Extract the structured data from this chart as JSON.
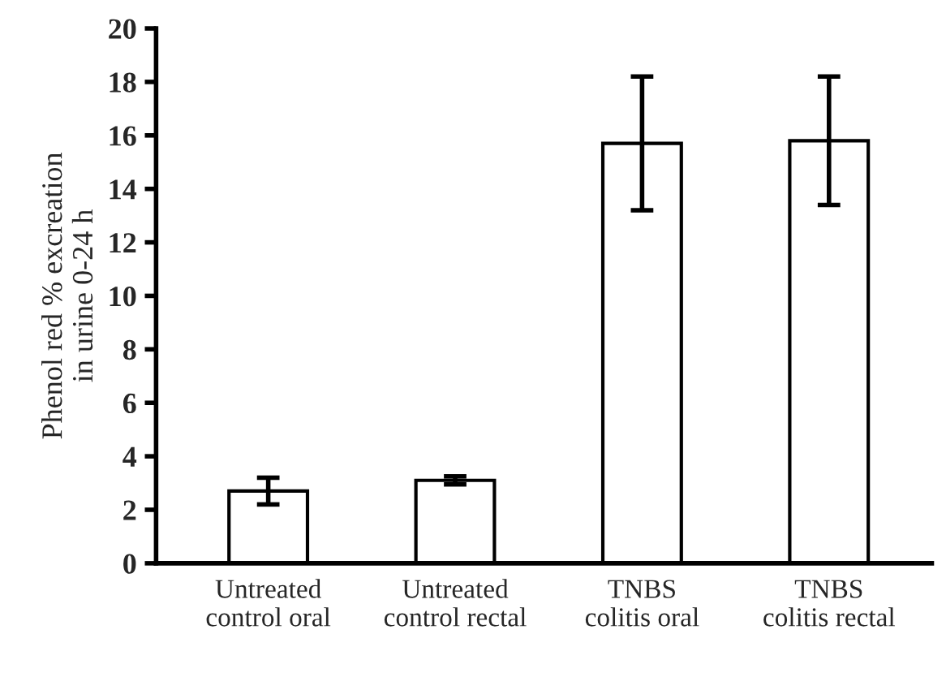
{
  "chart_data": {
    "type": "bar",
    "ylabel": "Phenol red % excreation\nin urine 0-24 h",
    "categories": [
      "Untreated\ncontrol oral",
      "Untreated\ncontrol rectal",
      "TNBS\ncolitis oral",
      "TNBS\ncolitis rectal"
    ],
    "values": [
      2.7,
      3.1,
      15.7,
      15.8
    ],
    "errors": [
      0.5,
      0.15,
      2.5,
      2.4
    ],
    "color": "#ffffff",
    "ylim": [
      0,
      20
    ],
    "yticks": [
      0,
      2,
      4,
      6,
      8,
      10,
      12,
      14,
      16,
      18,
      20
    ],
    "grid": false,
    "legend": false
  }
}
